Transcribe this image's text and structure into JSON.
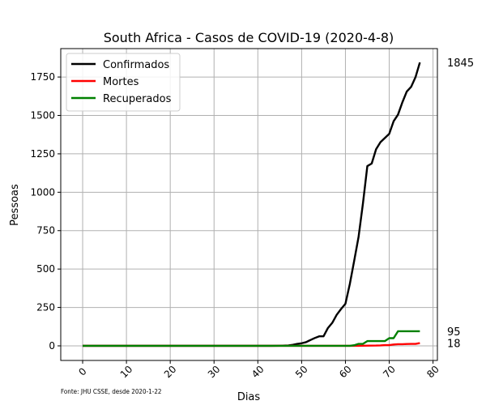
{
  "chart_data": {
    "type": "line",
    "title": "South Africa - Casos de COVID-19 (2020-4-8)",
    "xlabel": "Dias",
    "ylabel": "Pessoas",
    "xlim": [
      -5,
      81
    ],
    "ylim": [
      -95,
      1935
    ],
    "xticks": [
      0,
      10,
      20,
      30,
      40,
      50,
      60,
      70,
      80
    ],
    "yticks": [
      0,
      250,
      500,
      750,
      1000,
      1250,
      1500,
      1750
    ],
    "grid": true,
    "legend_position": "top-left",
    "source_note": "Fonte: JHU CSSE, desde 2020-1-22",
    "series": [
      {
        "name": "Confirmados",
        "color": "#000000",
        "x": [
          0,
          43,
          45,
          47,
          48,
          49,
          50,
          51,
          52,
          53,
          54,
          55,
          56,
          57,
          58,
          59,
          60,
          61,
          62,
          63,
          64,
          65,
          66,
          67,
          68,
          69,
          70,
          71,
          72,
          73,
          74,
          75,
          76,
          77
        ],
        "y": [
          0,
          0,
          1,
          3,
          7,
          13,
          17,
          24,
          38,
          51,
          62,
          62,
          116,
          150,
          202,
          240,
          274,
          402,
          554,
          709,
          927,
          1170,
          1187,
          1280,
          1326,
          1353,
          1380,
          1462,
          1505,
          1585,
          1655,
          1686,
          1749,
          1845
        ],
        "end_label": "1845"
      },
      {
        "name": "Mortes",
        "color": "#ff0000",
        "x": [
          0,
          63,
          64,
          67,
          68,
          69,
          70,
          71,
          72,
          73,
          74,
          75,
          76,
          77
        ],
        "y": [
          0,
          0,
          1,
          2,
          3,
          5,
          5,
          9,
          11,
          11,
          12,
          13,
          13,
          18
        ],
        "end_label": "18"
      },
      {
        "name": "Recuperados",
        "color": "#008000",
        "x": [
          0,
          61,
          62,
          63,
          64,
          65,
          66,
          67,
          68,
          69,
          70,
          71,
          72,
          73,
          74,
          75,
          76,
          77
        ],
        "y": [
          0,
          0,
          4,
          13,
          13,
          31,
          31,
          31,
          31,
          31,
          50,
          50,
          95,
          95,
          95,
          95,
          95,
          95
        ],
        "end_label": "95"
      }
    ]
  }
}
